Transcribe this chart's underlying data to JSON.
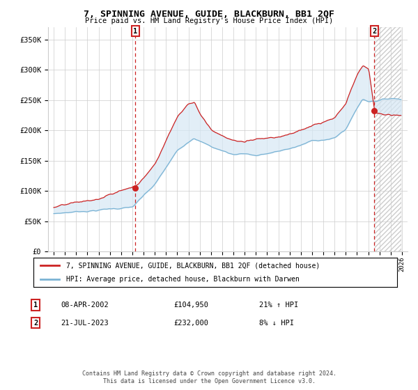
{
  "title": "7, SPINNING AVENUE, GUIDE, BLACKBURN, BB1 2QF",
  "subtitle": "Price paid vs. HM Land Registry's House Price Index (HPI)",
  "legend_line1": "7, SPINNING AVENUE, GUIDE, BLACKBURN, BB1 2QF (detached house)",
  "legend_line2": "HPI: Average price, detached house, Blackburn with Darwen",
  "footer": "Contains HM Land Registry data © Crown copyright and database right 2024.\nThis data is licensed under the Open Government Licence v3.0.",
  "sale1_date": "08-APR-2002",
  "sale1_price": "£104,950",
  "sale1_hpi": "21% ↑ HPI",
  "sale2_date": "21-JUL-2023",
  "sale2_price": "£232,000",
  "sale2_hpi": "8% ↓ HPI",
  "sale1_x": 2002.27,
  "sale1_y": 104950,
  "sale2_x": 2023.54,
  "sale2_y": 232000,
  "hpi_color": "#7ab3d4",
  "price_color": "#cc2222",
  "fill_color": "#d6e8f5",
  "ylim": [
    0,
    370000
  ],
  "xlim_left": 1994.5,
  "xlim_right": 2026.5,
  "yticks": [
    0,
    50000,
    100000,
    150000,
    200000,
    250000,
    300000,
    350000
  ],
  "ytick_labels": [
    "£0",
    "£50K",
    "£100K",
    "£150K",
    "£200K",
    "£250K",
    "£300K",
    "£350K"
  ],
  "xticks": [
    1995,
    1996,
    1997,
    1998,
    1999,
    2000,
    2001,
    2002,
    2003,
    2004,
    2005,
    2006,
    2007,
    2008,
    2009,
    2010,
    2011,
    2012,
    2013,
    2014,
    2015,
    2016,
    2017,
    2018,
    2019,
    2020,
    2021,
    2022,
    2023,
    2024,
    2025,
    2026
  ],
  "background_color": "#ffffff",
  "grid_color": "#cccccc"
}
